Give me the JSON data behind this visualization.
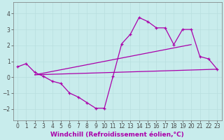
{
  "bg_color": "#c8ecec",
  "grid_color": "#b8dede",
  "line_color": "#aa00aa",
  "xlabel": "Windchill (Refroidissement éolien,°C)",
  "yticks": [
    -2,
    -1,
    0,
    1,
    2,
    3,
    4
  ],
  "xticks": [
    0,
    1,
    2,
    3,
    4,
    5,
    6,
    7,
    8,
    9,
    10,
    11,
    12,
    13,
    14,
    15,
    16,
    17,
    18,
    19,
    20,
    21,
    22,
    23
  ],
  "xlim": [
    -0.5,
    23.5
  ],
  "ylim": [
    -2.7,
    4.7
  ],
  "jagged_x": [
    0,
    1,
    2,
    3,
    4,
    5,
    6,
    7,
    8,
    9,
    10,
    11,
    12,
    13,
    14,
    15,
    16,
    17,
    18,
    19,
    20,
    21,
    22,
    23
  ],
  "jagged_y": [
    0.65,
    0.85,
    0.3,
    0.05,
    -0.25,
    -0.4,
    -1.0,
    -1.25,
    -1.6,
    -1.95,
    -1.95,
    0.05,
    2.1,
    2.7,
    3.75,
    3.5,
    3.1,
    3.1,
    2.05,
    3.0,
    3.0,
    1.3,
    1.15,
    0.5
  ],
  "flat_line_x": [
    2,
    23
  ],
  "flat_line_y": [
    0.15,
    0.5
  ],
  "rise_line_x": [
    2,
    20
  ],
  "rise_line_y": [
    0.15,
    2.05
  ],
  "tickfont_size": 5.5,
  "xlabel_fontsize": 6.5,
  "linewidth": 0.9,
  "marker_size": 3.0
}
